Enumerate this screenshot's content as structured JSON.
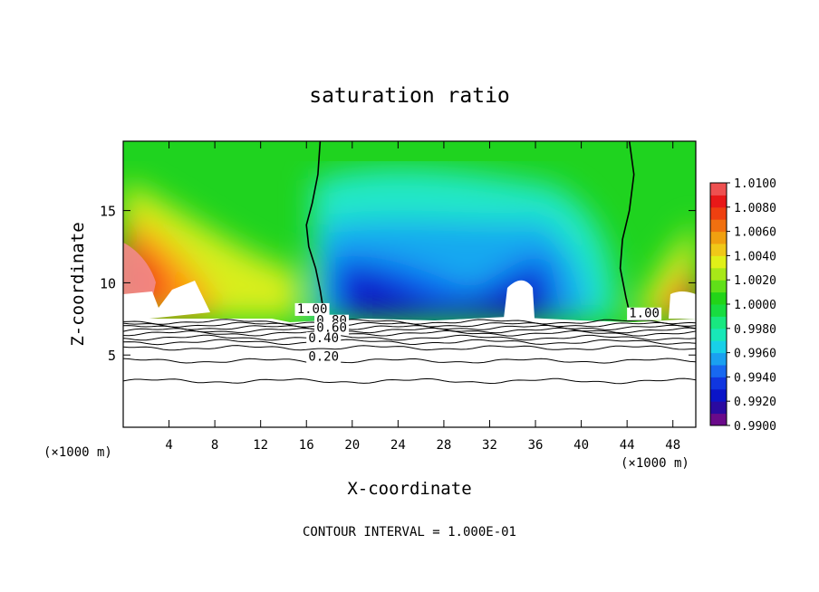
{
  "chart_data": {
    "type": "heatmap",
    "title": "saturation ratio",
    "xlabel": "X-coordinate",
    "ylabel": "Z-coordinate",
    "x_unit_left": "(×1000 m)",
    "x_unit_right": "(×1000 m)",
    "footer": "CONTOUR INTERVAL = 1.000E-01",
    "xlim": [
      0,
      50
    ],
    "ylim": [
      0,
      19.8
    ],
    "xticks": [
      4,
      8,
      12,
      16,
      20,
      24,
      28,
      32,
      36,
      40,
      44,
      48
    ],
    "yticks": [
      5,
      10,
      15
    ],
    "colorbar": {
      "min": 0.99,
      "max": 1.01,
      "step": 0.001,
      "labels": [
        "1.0100",
        "1.0080",
        "1.0060",
        "1.0040",
        "1.0020",
        "1.0000",
        "0.9980",
        "0.9960",
        "0.9940",
        "0.9920",
        "0.9900"
      ]
    },
    "contour_labels": [
      {
        "text": "1.00",
        "x": 16.5,
        "z": 7.9
      },
      {
        "text": "0.80",
        "x": 18.2,
        "z": 7.1
      },
      {
        "text": "0.60",
        "x": 18.2,
        "z": 6.6
      },
      {
        "text": "0.40",
        "x": 17.5,
        "z": 5.9
      },
      {
        "text": "0.20",
        "x": 17.5,
        "z": 4.6
      },
      {
        "text": "1.00",
        "x": 45.5,
        "z": 7.6
      }
    ],
    "contour_levels_z": [
      3.2,
      4.6,
      5.5,
      5.9,
      6.2,
      6.5,
      6.7,
      6.9,
      7.1,
      7.3
    ],
    "saturation_contour_1_00": [
      {
        "name": "left",
        "points": [
          [
            17.2,
            19.8
          ],
          [
            17.0,
            17.5
          ],
          [
            16.5,
            15.5
          ],
          [
            16.0,
            14.0
          ],
          [
            16.2,
            12.5
          ],
          [
            16.8,
            11.0
          ],
          [
            17.2,
            9.5
          ],
          [
            17.5,
            8.0
          ]
        ]
      },
      {
        "name": "right",
        "points": [
          [
            44.2,
            19.8
          ],
          [
            44.6,
            17.5
          ],
          [
            44.2,
            15.0
          ],
          [
            43.6,
            13.0
          ],
          [
            43.4,
            11.0
          ],
          [
            43.9,
            9.0
          ],
          [
            44.3,
            7.6
          ]
        ]
      }
    ]
  }
}
